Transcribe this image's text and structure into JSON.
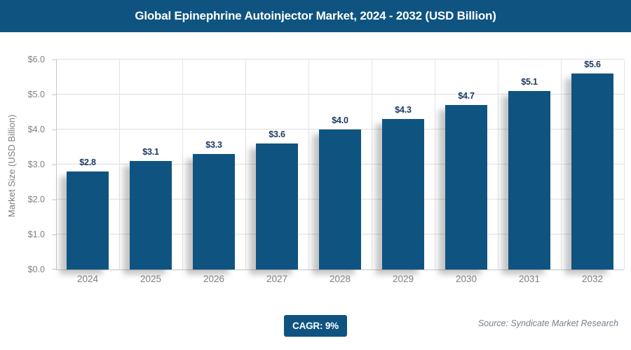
{
  "header": {
    "title": "Global Epinephrine Autoinjector Market, 2024 - 2032 (USD Billion)"
  },
  "chart_data": {
    "type": "bar",
    "title": "Global Epinephrine Autoinjector Market, 2024 - 2032 (USD Billion)",
    "categories": [
      "2024",
      "2025",
      "2026",
      "2027",
      "2028",
      "2029",
      "2030",
      "2031",
      "2032"
    ],
    "values": [
      2.8,
      3.1,
      3.3,
      3.6,
      4.0,
      4.3,
      4.7,
      5.1,
      5.6
    ],
    "value_labels": [
      "$2.8",
      "$3.1",
      "$3.3",
      "$3.6",
      "$4.0",
      "$4.3",
      "$4.7",
      "$5.1",
      "$5.6"
    ],
    "xlabel": "",
    "ylabel": "Market Size (USD Billion)",
    "ylim": [
      0,
      6
    ],
    "ytick_step": 1,
    "ytick_labels": [
      "$0.0",
      "$1.0",
      "$2.0",
      "$3.0",
      "$4.0",
      "$5.0",
      "$6.0"
    ],
    "grid": true,
    "legend": "none",
    "bar_color": "#0F5480",
    "value_label_color": "#1F3864",
    "tick_label_color": "#808080"
  },
  "footer": {
    "cagr_label": "CAGR: 9%",
    "source": "Source: Syndicate Market Research"
  },
  "colors": {
    "accent_navy": "#0F5480",
    "gridline": "#DEDEDE",
    "axis": "#C6C6C6",
    "background": "#FFFFFF"
  }
}
